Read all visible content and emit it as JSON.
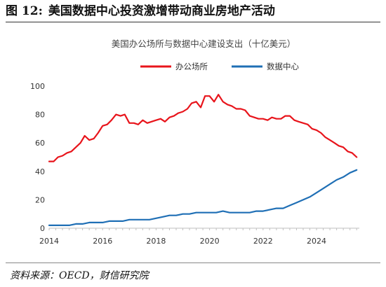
{
  "figure": {
    "number": "图 12:",
    "title": "美国数据中心投资激增带动商业房地产活动",
    "source": "资料来源：OECD，财信研究院"
  },
  "chart_data": {
    "type": "line",
    "title": "美国办公场所与数据中心建设支出（十亿美元）",
    "xlabel": "",
    "ylabel": "",
    "xlim": [
      2014,
      2025.6
    ],
    "ylim": [
      0,
      100
    ],
    "x_ticks": [
      "2014",
      "2016",
      "2018",
      "2020",
      "2022",
      "2024"
    ],
    "y_ticks": [
      "0",
      "20",
      "40",
      "60",
      "80",
      "100"
    ],
    "legend_position": "top",
    "grid": false,
    "series": [
      {
        "name": "办公场所",
        "color": "#e8141b",
        "x": [
          2014.0,
          2014.17,
          2014.33,
          2014.5,
          2014.67,
          2014.83,
          2015.0,
          2015.17,
          2015.33,
          2015.5,
          2015.67,
          2015.83,
          2016.0,
          2016.17,
          2016.33,
          2016.5,
          2016.67,
          2016.83,
          2017.0,
          2017.17,
          2017.33,
          2017.5,
          2017.67,
          2017.83,
          2018.0,
          2018.17,
          2018.33,
          2018.5,
          2018.67,
          2018.83,
          2019.0,
          2019.17,
          2019.33,
          2019.5,
          2019.67,
          2019.83,
          2020.0,
          2020.17,
          2020.33,
          2020.5,
          2020.67,
          2020.83,
          2021.0,
          2021.17,
          2021.33,
          2021.5,
          2021.67,
          2021.83,
          2022.0,
          2022.17,
          2022.33,
          2022.5,
          2022.67,
          2022.83,
          2023.0,
          2023.17,
          2023.33,
          2023.5,
          2023.67,
          2023.83,
          2024.0,
          2024.17,
          2024.33,
          2024.5,
          2024.67,
          2024.83,
          2025.0,
          2025.17,
          2025.33,
          2025.5
        ],
        "y": [
          47,
          47,
          50,
          51,
          53,
          54,
          57,
          60,
          65,
          62,
          63,
          67,
          72,
          73,
          76,
          80,
          79,
          80,
          74,
          74,
          73,
          76,
          74,
          75,
          76,
          77,
          75,
          78,
          79,
          81,
          82,
          84,
          88,
          89,
          85,
          93,
          93,
          89,
          94,
          89,
          87,
          86,
          84,
          84,
          83,
          79,
          78,
          77,
          77,
          76,
          78,
          77,
          77,
          79,
          79,
          76,
          75,
          74,
          73,
          70,
          69,
          67,
          64,
          62,
          60,
          58,
          57,
          54,
          53,
          50
        ]
      },
      {
        "name": "数据中心",
        "color": "#1f6fb5",
        "x": [
          2014.0,
          2014.25,
          2014.5,
          2014.75,
          2015.0,
          2015.25,
          2015.5,
          2015.75,
          2016.0,
          2016.25,
          2016.5,
          2016.75,
          2017.0,
          2017.25,
          2017.5,
          2017.75,
          2018.0,
          2018.25,
          2018.5,
          2018.75,
          2019.0,
          2019.25,
          2019.5,
          2019.75,
          2020.0,
          2020.25,
          2020.5,
          2020.75,
          2021.0,
          2021.25,
          2021.5,
          2021.75,
          2022.0,
          2022.25,
          2022.5,
          2022.75,
          2023.0,
          2023.25,
          2023.5,
          2023.75,
          2024.0,
          2024.25,
          2024.5,
          2024.75,
          2025.0,
          2025.25,
          2025.5
        ],
        "y": [
          2,
          2,
          2,
          2,
          3,
          3,
          4,
          4,
          4,
          5,
          5,
          5,
          6,
          6,
          6,
          6,
          7,
          8,
          9,
          9,
          10,
          10,
          11,
          11,
          11,
          11,
          12,
          11,
          11,
          11,
          11,
          12,
          12,
          13,
          14,
          14,
          16,
          18,
          20,
          22,
          25,
          28,
          31,
          34,
          36,
          39,
          41
        ]
      }
    ]
  }
}
